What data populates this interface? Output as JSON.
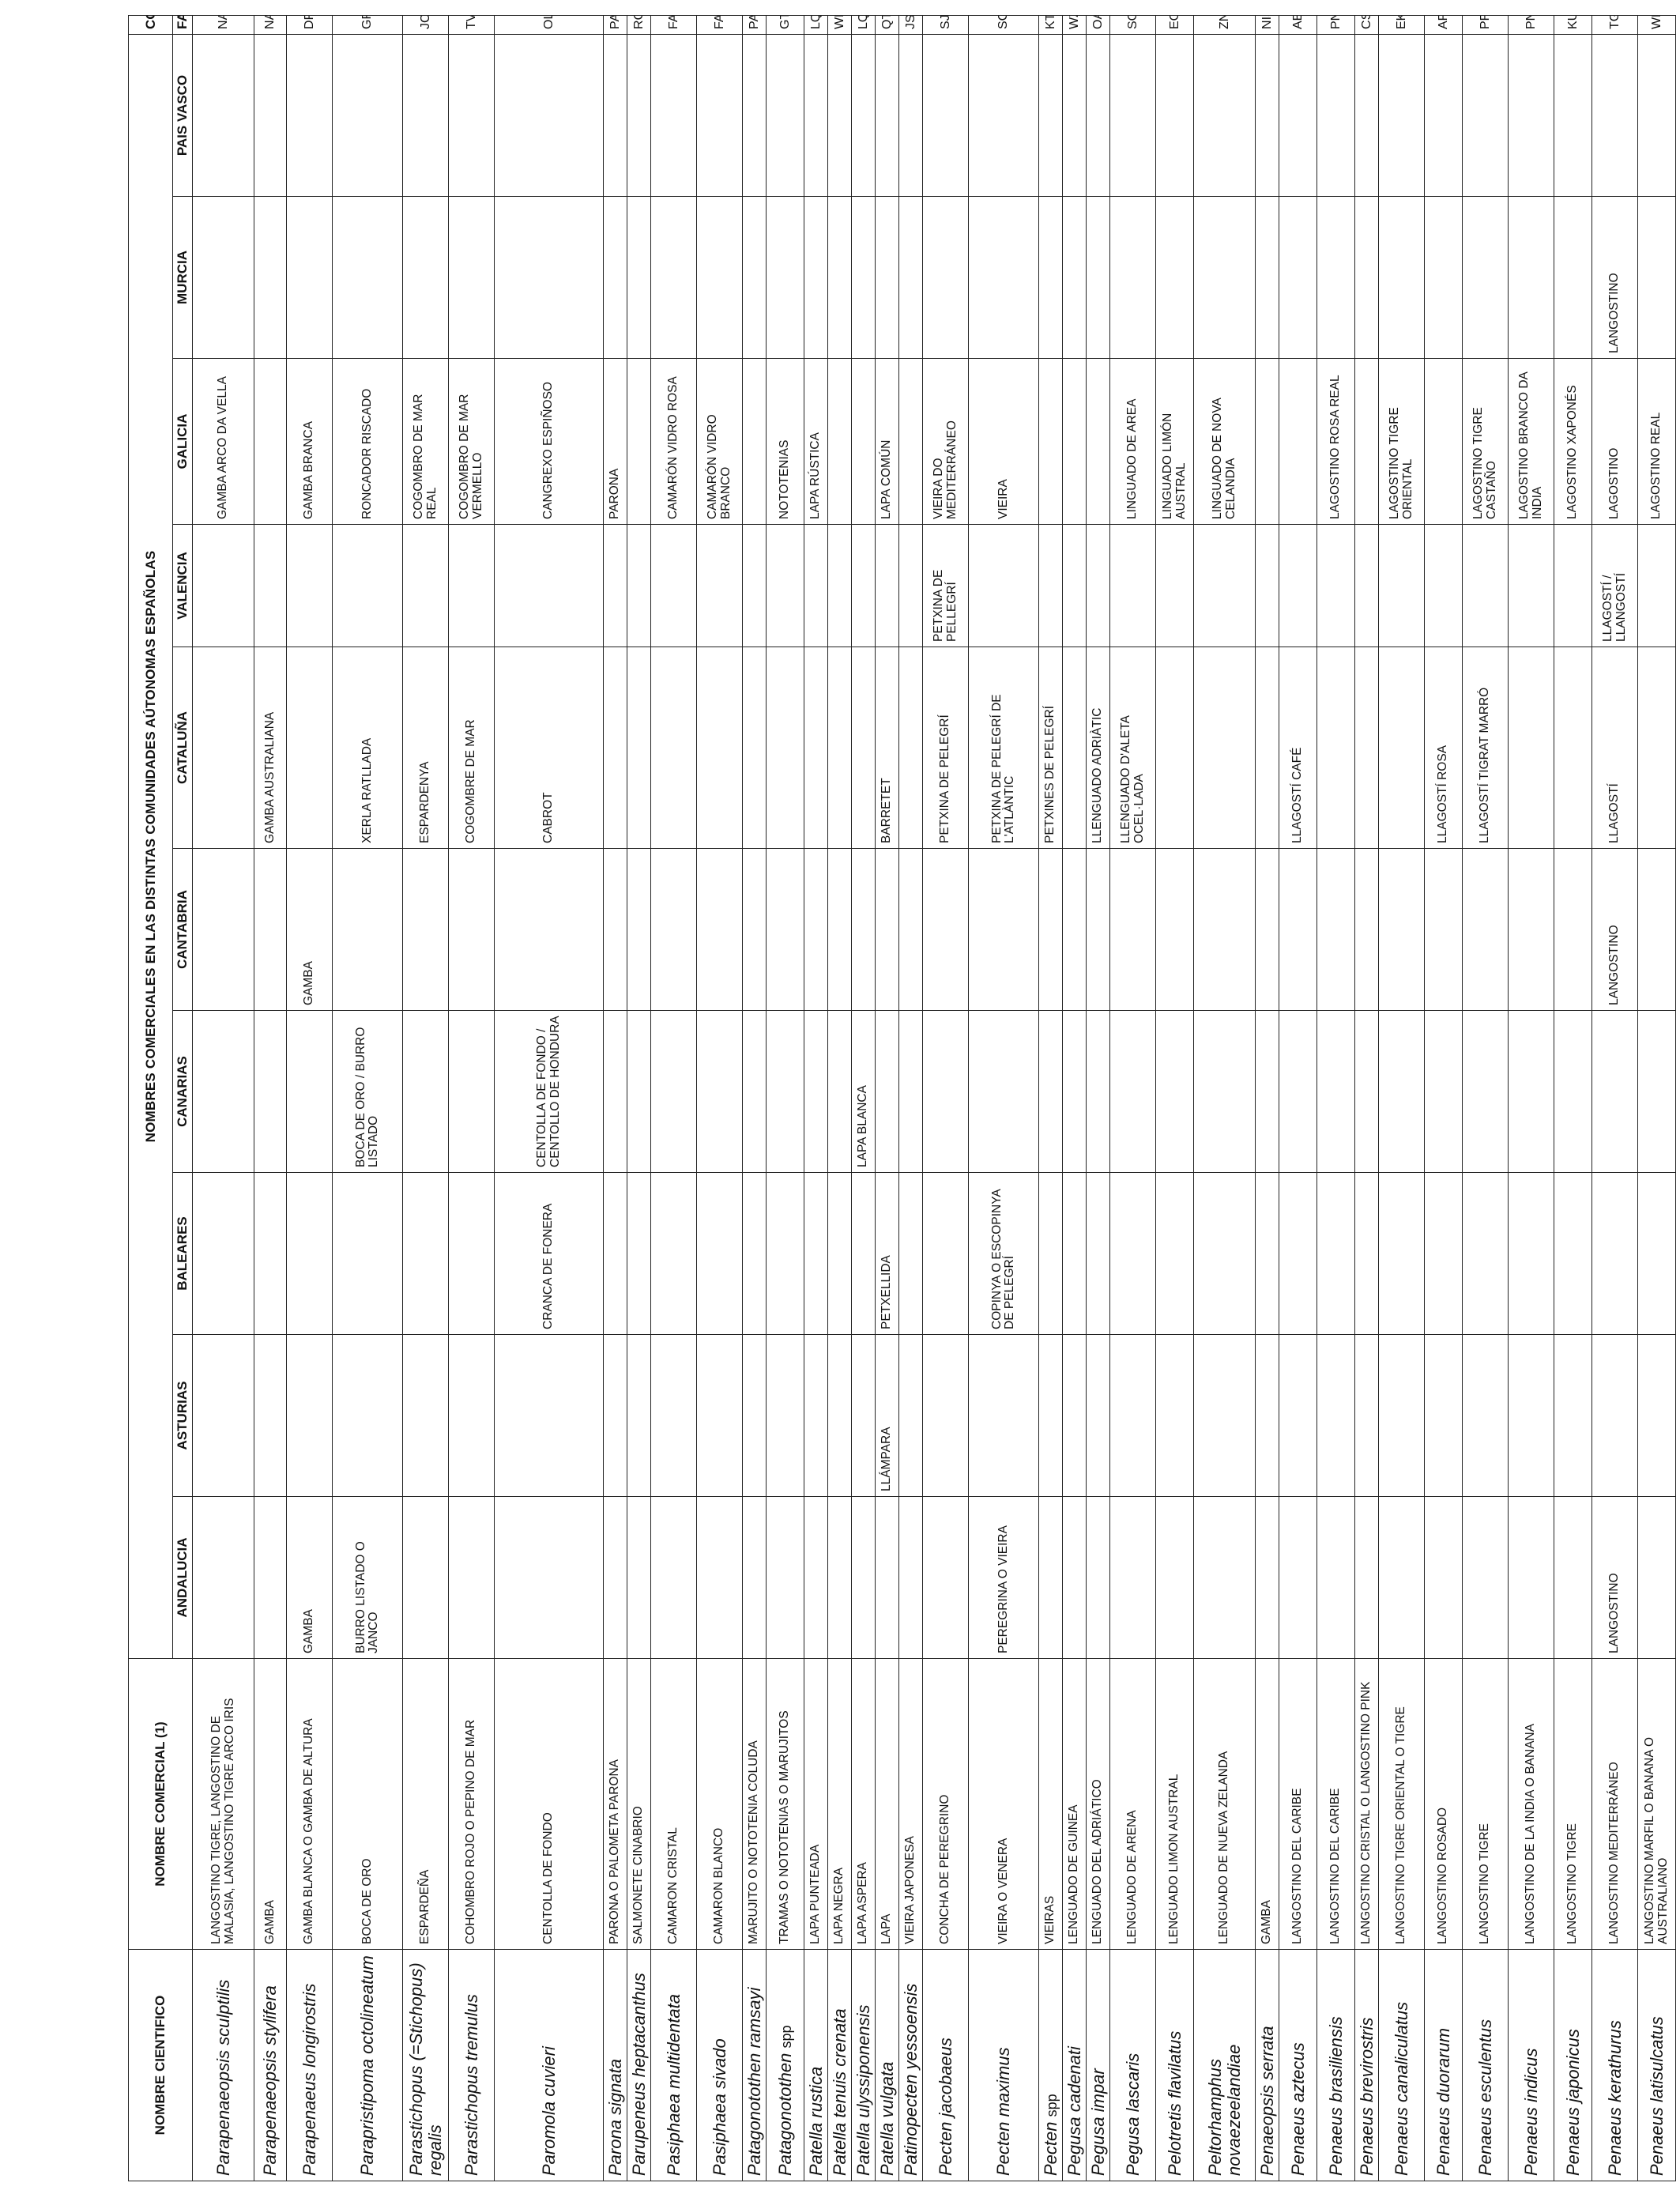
{
  "table": {
    "title": "NOMBRES COMERCIALES EN LAS DISTINTAS COMUNIDADES AÚTONOMAS ESPAÑOLAS",
    "cod_label": "COD",
    "headers": {
      "scientific": "NOMBRE CIENTIFICO",
      "commercial": "NOMBRE COMERCIAL (1)",
      "regions": [
        "ANDALUCIA",
        "ASTURIAS",
        "BALEARES",
        "CANARIAS",
        "CANTABRIA",
        "CATALUÑA",
        "VALENCIA",
        "GALICIA",
        "MURCIA",
        "PAIS VASCO"
      ],
      "fao": "FAO"
    },
    "rows": [
      {
        "sci": "Parapenaeopsis sculptilis",
        "com": "LANGOSTINO TIGRE, LANGOSTINO DE MALASIA, LANGOSTINO TIGRE ARCO IRIS",
        "r": [
          "",
          "",
          "",
          "",
          "",
          "",
          "",
          "GAMBA ARCO DA VELLA",
          "",
          ""
        ],
        "fao": "NAP"
      },
      {
        "sci": "Parapenaeopsis stylifera",
        "com": "GAMBA",
        "r": [
          "",
          "",
          "",
          "",
          "",
          "GAMBA AUSTRALIANA",
          "",
          "",
          "",
          ""
        ],
        "fao": "NAY"
      },
      {
        "sci": "Parapenaeus longirostris",
        "com": "GAMBA BLANCA O GAMBA DE ALTURA",
        "r": [
          "GAMBA",
          "",
          "",
          "",
          "GAMBA",
          "",
          "",
          "GAMBA BRANCA",
          "",
          ""
        ],
        "fao": "DPS"
      },
      {
        "sci": "Parapristipoma octolineatum",
        "com": "BOCA DE ORO",
        "r": [
          "BURRO LISTADO O JANCO",
          "",
          "",
          "BOCA DE ORO / BURRO LISTADO",
          "",
          "XERLA RATLLADA",
          "",
          "RONCADOR RISCADO",
          "",
          ""
        ],
        "fao": "GRA"
      },
      {
        "sci": "Parastichopus (=Stichopus) regalis",
        "com": "ESPARDEÑA",
        "r": [
          "",
          "",
          "",
          "",
          "",
          "ESPARDENYA",
          "",
          "COGOMBRO DE MAR REAL",
          "",
          ""
        ],
        "fao": "JCR"
      },
      {
        "sci": "Parastichopus tremulus",
        "com": "COHOMBRO ROJO O PEPINO DE MAR",
        "r": [
          "",
          "",
          "",
          "",
          "",
          "COGOMBRE DE MAR",
          "",
          "COGOMBRO DE MAR VERMELLO",
          "",
          ""
        ],
        "fao": "TVK"
      },
      {
        "sci": "Paromola cuvieri",
        "com": "CENTOLLA DE FONDO",
        "r": [
          "",
          "",
          "CRANCA DE FONERA",
          "CENTOLLA DE FONDO / CENTOLLO DE HONDURA",
          "",
          "CABROT",
          "",
          "CANGREXO ESPIÑOSO",
          "",
          ""
        ],
        "fao": "OLV"
      },
      {
        "sci": "Parona signata",
        "com": "PARONA O PALOMETA PARONA",
        "r": [
          "",
          "",
          "",
          "",
          "",
          "",
          "",
          "PARONA",
          "",
          ""
        ],
        "fao": "PAO"
      },
      {
        "sci": "Parupeneus heptacanthus",
        "com": "SALMONETE CINABRIO",
        "r": [
          "",
          "",
          "",
          "",
          "",
          "",
          "",
          "",
          "",
          ""
        ],
        "fao": "RQF"
      },
      {
        "sci": "Pasiphaea multidentata",
        "com": "CAMARON CRISTAL",
        "r": [
          "",
          "",
          "",
          "",
          "",
          "",
          "",
          "CAMARÓN VIDRO ROSA",
          "",
          ""
        ],
        "fao": "FAM"
      },
      {
        "sci": "Pasiphaea sivado",
        "com": "CAMARON BLANCO",
        "r": [
          "",
          "",
          "",
          "",
          "",
          "",
          "",
          "CAMARÓN VIDRO BRANCO",
          "",
          ""
        ],
        "fao": "FAV"
      },
      {
        "sci": "Patagonotothen ramsayi",
        "com": "MARUJITO O NOTOTENIA COLUDA",
        "r": [
          "",
          "",
          "",
          "",
          "",
          "",
          "",
          "",
          "",
          ""
        ],
        "fao": "PAT"
      },
      {
        "sci": "Patagonotothen",
        "spp": "spp",
        "com": "TRAMAS O NOTOTENIAS O MARUJITOS",
        "r": [
          "",
          "",
          "",
          "",
          "",
          "",
          "",
          "NOTOTENIAS",
          "",
          ""
        ],
        "fao": "GTX"
      },
      {
        "sci": "Patella rustica",
        "com": "LAPA PUNTEADA",
        "r": [
          "",
          "",
          "",
          "",
          "",
          "",
          "",
          "LAPA RÚSTICA",
          "",
          ""
        ],
        "fao": "LQR"
      },
      {
        "sci": "Patella tenuis crenata",
        "com": "LAPA NEGRA",
        "r": [
          "",
          "",
          "",
          "",
          "",
          "",
          "",
          "",
          "",
          ""
        ],
        "fao": "WPT"
      },
      {
        "sci": "Patella ulyssiponensis",
        "com": "LAPA ASPERA",
        "r": [
          "",
          "",
          "",
          "LAPA BLANCA",
          "",
          "",
          "",
          "",
          "",
          ""
        ],
        "fao": "LQY"
      },
      {
        "sci": "Patella vulgata",
        "com": "LAPA",
        "r": [
          "",
          "LLÁMPARA",
          "PETXELLIDA",
          "",
          "",
          "BARRETET",
          "",
          "LAPA COMÚN",
          "",
          ""
        ],
        "fao": "QTV"
      },
      {
        "sci": "Patinopecten yessoensis",
        "com": "VIEIRA JAPONESA",
        "r": [
          "",
          "",
          "",
          "",
          "",
          "",
          "",
          "",
          "",
          ""
        ],
        "fao": "JSC"
      },
      {
        "sci": "Pecten jacobaeus",
        "com": "CONCHA DE PEREGRINO",
        "r": [
          "",
          "",
          "",
          "",
          "",
          "PETXINA DE PELEGRÍ",
          "PETXINA DE PELLEGRÍ",
          "VIEIRA DO MEDITERRÁNEO",
          "",
          ""
        ],
        "fao": "SJA"
      },
      {
        "sci": "Pecten maximus",
        "com": "VIEIRA O VENERA",
        "r": [
          "PEREGRINA O VIEIRA",
          "",
          "COPINYA O ESCOPINYA DE PELEGRÍ",
          "",
          "",
          "PETXINA DE PELEGRÍ DE L'ATLÀNTIC",
          "",
          "VIEIRA",
          "",
          ""
        ],
        "fao": "SCE"
      },
      {
        "sci": "Pecten",
        "spp": "spp",
        "com": "VIEIRAS",
        "r": [
          "",
          "",
          "",
          "",
          "",
          "PETXINES DE PELEGRÍ",
          "",
          "",
          "",
          ""
        ],
        "fao": "KTZ"
      },
      {
        "sci": "Pegusa cadenati",
        "com": "LENGUADO DE GUINEA",
        "r": [
          "",
          "",
          "",
          "",
          "",
          "",
          "",
          "",
          "",
          ""
        ],
        "fao": "WZA"
      },
      {
        "sci": "Pegusa impar",
        "com": "LENGUADO DEL ADRIÁTICO",
        "r": [
          "",
          "",
          "",
          "",
          "",
          "LLENGUADO ADRIÀTIC",
          "",
          "",
          "",
          ""
        ],
        "fao": "OAM"
      },
      {
        "sci": "Pegusa lascaris",
        "com": "LENGUADO DE ARENA",
        "r": [
          "",
          "",
          "",
          "",
          "",
          "LLENGUADO D'ALETA OCEL·LADA",
          "",
          "LINGUADO DE AREA",
          "",
          ""
        ],
        "fao": "SOS"
      },
      {
        "sci": "Pelotretis flavilatus",
        "com": "LENGUADO LIMON AUSTRAL",
        "r": [
          "",
          "",
          "",
          "",
          "",
          "",
          "",
          "LINGUADO LIMÓN AUSTRAL",
          "",
          ""
        ],
        "fao": "EOL"
      },
      {
        "sci": "Peltorhamphus novaezeelandiae",
        "com": "LENGUADO DE NUEVA ZELANDA",
        "r": [
          "",
          "",
          "",
          "",
          "",
          "",
          "",
          "LINGUADO DE NOVA CELANDIA",
          "",
          ""
        ],
        "fao": "ZNZ"
      },
      {
        "sci": "Penaeopsis serrata",
        "com": "GAMBA",
        "r": [
          "",
          "",
          "",
          "",
          "",
          "",
          "",
          "",
          "",
          ""
        ],
        "fao": "NIS"
      },
      {
        "sci": "Penaeus aztecus",
        "com": "LANGOSTINO DEL CARIBE",
        "r": [
          "",
          "",
          "",
          "",
          "",
          "LLAGOSTÍ CAFÉ",
          "",
          "",
          "",
          ""
        ],
        "fao": "ABS"
      },
      {
        "sci": "Penaeus brasiliensis",
        "com": "LANGOSTINO DEL CARIBE",
        "r": [
          "",
          "",
          "",
          "",
          "",
          "",
          "",
          "LAGOSTINO ROSA REAL",
          "",
          ""
        ],
        "fao": "PNB"
      },
      {
        "sci": "Penaeus brevirostris",
        "com": "LANGOSTINO CRISTAL O LANGOSTINO PINK",
        "r": [
          "",
          "",
          "",
          "",
          "",
          "",
          "",
          "",
          "",
          ""
        ],
        "fao": "CSP"
      },
      {
        "sci": "Penaeus canaliculatus",
        "com": "LANGOSTINO TIGRE ORIENTAL O TIGRE",
        "r": [
          "",
          "",
          "",
          "",
          "",
          "",
          "",
          "LAGOSTINO TIGRE ORIENTAL",
          "",
          ""
        ],
        "fao": "EKU"
      },
      {
        "sci": "Penaeus duorarum",
        "com": "LANGOSTINO ROSADO",
        "r": [
          "",
          "",
          "",
          "",
          "",
          "LLAGOSTÍ ROSA",
          "",
          "",
          "",
          ""
        ],
        "fao": "APS"
      },
      {
        "sci": "Penaeus esculentus",
        "com": "LANGOSTINO TIGRE",
        "r": [
          "",
          "",
          "",
          "",
          "",
          "LLAGOSTÍ TIGRAT MARRÓ",
          "",
          "LAGOSTINO TIGRE CASTAÑO",
          "",
          ""
        ],
        "fao": "PRB"
      },
      {
        "sci": "Penaeus indicus",
        "com": "LANGOSTINO DE LA INDIA O BANANA",
        "r": [
          "",
          "",
          "",
          "",
          "",
          "",
          "",
          "LAGOSTINO BRANCO DA INDIA",
          "",
          ""
        ],
        "fao": "PNI"
      },
      {
        "sci": "Penaeus japonicus",
        "com": "LANGOSTINO TIGRE",
        "r": [
          "",
          "",
          "",
          "",
          "",
          "",
          "",
          "LAGOSTINO XAPONÉS",
          "",
          ""
        ],
        "fao": "KUP"
      },
      {
        "sci": "Penaeus kerathurus",
        "com": "LANGOSTINO MEDITERRÁNEO",
        "r": [
          "LANGOSTINO",
          "",
          "",
          "",
          "LANGOSTINO",
          "LLAGOSTÍ",
          "LLAGOSTÍ / LLANGOSTÍ",
          "LAGOSTINO",
          "LANGOSTINO",
          ""
        ],
        "fao": "TGS"
      },
      {
        "sci": "Penaeus latisulcatus",
        "com": "LANGOSTINO MARFIL O BANANA O AUSTRALIANO",
        "r": [
          "",
          "",
          "",
          "",
          "",
          "",
          "",
          "LAGOSTINO REAL",
          "",
          ""
        ],
        "fao": "WKP"
      }
    ]
  }
}
